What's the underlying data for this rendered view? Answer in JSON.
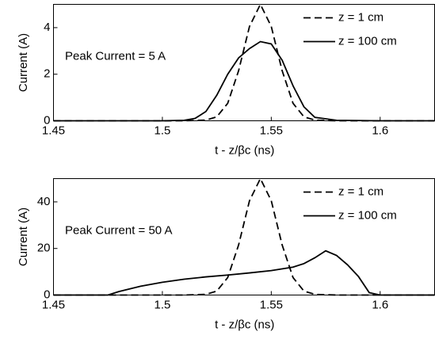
{
  "chart_data": [
    {
      "type": "line",
      "xlabel": "t - z/βc (ns)",
      "ylabel": "Current (A)",
      "annotation": "Peak Current = 5 A",
      "xlim": [
        1.45,
        1.625
      ],
      "xticks": [
        1.45,
        1.5,
        1.55,
        1.6
      ],
      "ylim": [
        0,
        5
      ],
      "yticks": [
        0,
        2,
        4
      ],
      "legend": "upper right",
      "series": [
        {
          "name": "z = 1 cm",
          "color": "#000000",
          "dashed": true,
          "x": [
            1.45,
            1.5,
            1.51,
            1.52,
            1.525,
            1.53,
            1.535,
            1.54,
            1.545,
            1.55,
            1.555,
            1.56,
            1.565,
            1.57,
            1.58,
            1.6,
            1.625
          ],
          "values": [
            0,
            0,
            0,
            0.03,
            0.17,
            0.75,
            2.15,
            4.05,
            5,
            4.05,
            2.15,
            0.75,
            0.17,
            0.03,
            0,
            0,
            0
          ]
        },
        {
          "name": "z = 100 cm",
          "color": "#000000",
          "dashed": false,
          "x": [
            1.45,
            1.5,
            1.51,
            1.515,
            1.52,
            1.525,
            1.53,
            1.535,
            1.54,
            1.545,
            1.55,
            1.555,
            1.56,
            1.565,
            1.57,
            1.58,
            1.6,
            1.625
          ],
          "values": [
            0,
            0,
            0.02,
            0.1,
            0.4,
            1.1,
            2.0,
            2.7,
            3.1,
            3.4,
            3.3,
            2.6,
            1.5,
            0.6,
            0.15,
            0.02,
            0,
            0
          ]
        }
      ]
    },
    {
      "type": "line",
      "xlabel": "t - z/βc (ns)",
      "ylabel": "Current (A)",
      "annotation": "Peak Current = 50 A",
      "xlim": [
        1.45,
        1.625
      ],
      "xticks": [
        1.45,
        1.5,
        1.55,
        1.6
      ],
      "ylim": [
        0,
        50
      ],
      "yticks": [
        0,
        20,
        40
      ],
      "legend": "upper right",
      "series": [
        {
          "name": "z = 1 cm",
          "color": "#000000",
          "dashed": true,
          "x": [
            1.45,
            1.5,
            1.51,
            1.52,
            1.525,
            1.53,
            1.535,
            1.54,
            1.545,
            1.55,
            1.555,
            1.56,
            1.565,
            1.57,
            1.58,
            1.6,
            1.625
          ],
          "values": [
            0,
            0,
            0,
            0.3,
            1.7,
            7.5,
            21.5,
            40.5,
            50,
            40.5,
            21.5,
            7.5,
            1.7,
            0.3,
            0,
            0,
            0
          ]
        },
        {
          "name": "z = 100 cm",
          "color": "#000000",
          "dashed": false,
          "x": [
            1.45,
            1.475,
            1.48,
            1.49,
            1.5,
            1.51,
            1.52,
            1.53,
            1.54,
            1.55,
            1.56,
            1.565,
            1.57,
            1.575,
            1.58,
            1.585,
            1.59,
            1.595,
            1.6,
            1.625
          ],
          "values": [
            0,
            0,
            1.5,
            3.8,
            5.5,
            6.8,
            7.8,
            8.6,
            9.5,
            10.5,
            12,
            13.5,
            16,
            19,
            17,
            13,
            8,
            1,
            0,
            0
          ]
        }
      ]
    }
  ]
}
